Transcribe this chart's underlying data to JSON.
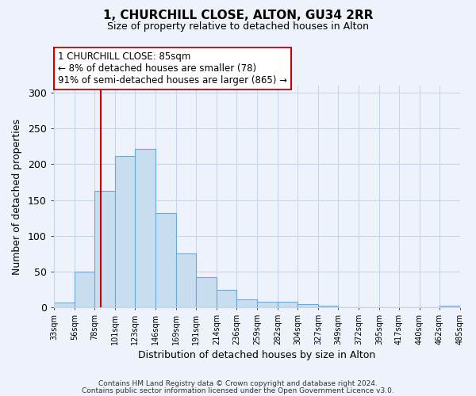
{
  "title": "1, CHURCHILL CLOSE, ALTON, GU34 2RR",
  "subtitle": "Size of property relative to detached houses in Alton",
  "xlabel": "Distribution of detached houses by size in Alton",
  "ylabel": "Number of detached properties",
  "bar_color": "#c8ddf0",
  "bar_edge_color": "#6aaad4",
  "background_color": "#eef2fa",
  "bins": [
    33,
    56,
    78,
    101,
    123,
    146,
    169,
    191,
    214,
    236,
    259,
    282,
    304,
    327,
    349,
    372,
    395,
    417,
    440,
    462,
    485
  ],
  "bin_labels": [
    "33sqm",
    "56sqm",
    "78sqm",
    "101sqm",
    "123sqm",
    "146sqm",
    "169sqm",
    "191sqm",
    "214sqm",
    "236sqm",
    "259sqm",
    "282sqm",
    "304sqm",
    "327sqm",
    "349sqm",
    "372sqm",
    "395sqm",
    "417sqm",
    "440sqm",
    "462sqm",
    "485sqm"
  ],
  "counts": [
    7,
    50,
    163,
    211,
    221,
    132,
    75,
    42,
    24,
    11,
    8,
    8,
    5,
    2,
    0,
    0,
    0,
    0,
    0,
    2
  ],
  "ylim": [
    0,
    310
  ],
  "yticks": [
    0,
    50,
    100,
    150,
    200,
    250,
    300
  ],
  "property_line_x": 85,
  "annotation_title": "1 CHURCHILL CLOSE: 85sqm",
  "annotation_line1": "← 8% of detached houses are smaller (78)",
  "annotation_line2": "91% of semi-detached houses are larger (865) →",
  "footer1": "Contains HM Land Registry data © Crown copyright and database right 2024.",
  "footer2": "Contains public sector information licensed under the Open Government Licence v3.0.",
  "annotation_box_color": "#ffffff",
  "annotation_box_edge": "#cc0000",
  "red_line_color": "#cc0000",
  "grid_color": "#c8d4e8"
}
